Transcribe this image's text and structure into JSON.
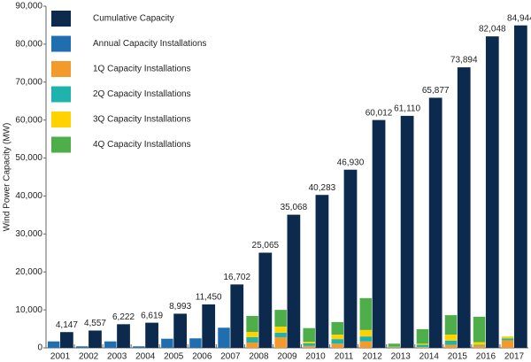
{
  "chart_data": {
    "type": "bar",
    "y_label": "Wind Power Capacity (MW)",
    "categories": [
      "2001",
      "2002",
      "2003",
      "2004",
      "2005",
      "2006",
      "2007",
      "2008",
      "2009",
      "2010",
      "2011",
      "2012",
      "2013",
      "2014",
      "2015",
      "2016",
      "2017"
    ],
    "series": [
      {
        "name": "Cumulative Capacity",
        "color": "#0c2a4d",
        "values": [
          4147,
          4557,
          6222,
          6619,
          8993,
          11450,
          16702,
          25065,
          35068,
          40283,
          46930,
          60012,
          61110,
          65877,
          73894,
          82048,
          84944
        ],
        "value_labels": [
          "4,147",
          "4,557",
          "6,222",
          "6,619",
          "8,993",
          "11,450",
          "16,702",
          "25,065",
          "35,068",
          "40,283",
          "46,930",
          "60,012",
          "61,110",
          "65,877",
          "73,894",
          "82,048",
          "84,944"
        ]
      },
      {
        "name": "Annual Capacity Installations",
        "color": "#1f6eb0",
        "values": [
          1700,
          400,
          1700,
          400,
          2400,
          2500,
          5300,
          null,
          null,
          null,
          null,
          null,
          null,
          null,
          null,
          null,
          null
        ]
      },
      {
        "name": "1Q Capacity Installations",
        "color": "#f39a2b",
        "values": [
          null,
          null,
          null,
          null,
          null,
          null,
          null,
          1400,
          2800,
          500,
          1100,
          1700,
          100,
          200,
          800,
          600,
          2000
        ]
      },
      {
        "name": "2Q Capacity Installations",
        "color": "#1fb3ae",
        "values": [
          null,
          null,
          null,
          null,
          null,
          null,
          null,
          1400,
          1200,
          700,
          1200,
          1300,
          100,
          600,
          1100,
          200,
          500
        ]
      },
      {
        "name": "3Q Capacity Installations",
        "color": "#ffd200",
        "values": [
          null,
          null,
          null,
          null,
          null,
          null,
          null,
          1400,
          1600,
          400,
          1200,
          1700,
          100,
          300,
          1600,
          700,
          500
        ]
      },
      {
        "name": "4Q Capacity Installations",
        "color": "#4dae4a",
        "values": [
          null,
          null,
          null,
          null,
          null,
          null,
          null,
          4200,
          4400,
          3600,
          3300,
          8400,
          800,
          3800,
          5100,
          6700,
          null
        ]
      }
    ],
    "ylim": [
      0,
      90000
    ],
    "yticks": [
      0,
      {
        "value": 10000,
        "label": "10,000"
      },
      {
        "value": 20000,
        "label": "20,000"
      },
      {
        "value": 30000,
        "label": "30,000"
      },
      {
        "value": 40000,
        "label": "40,000"
      },
      {
        "value": 50000,
        "label": "50,000"
      },
      {
        "value": 60000,
        "label": "60,000"
      },
      {
        "value": 70000,
        "label": "70,000"
      },
      {
        "value": 80000,
        "label": "80,000"
      },
      {
        "value": 90000,
        "label": "90,000"
      }
    ],
    "legend": "top-left"
  }
}
